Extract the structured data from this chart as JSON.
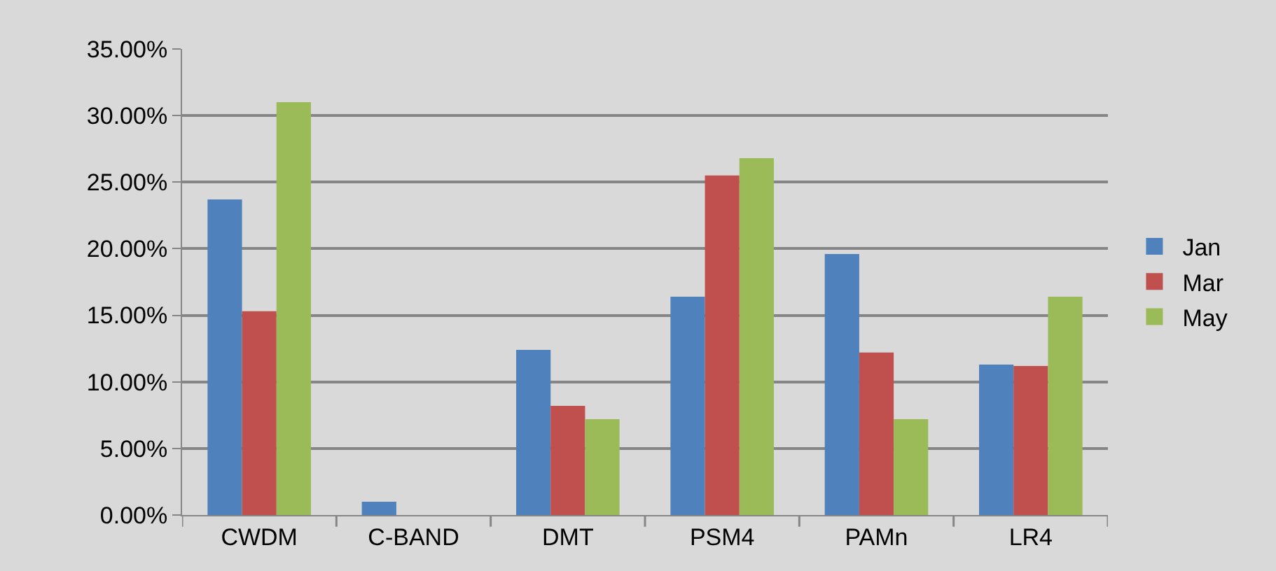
{
  "chart_data": {
    "type": "bar",
    "categories": [
      "CWDM",
      "C-BAND",
      "DMT",
      "PSM4",
      "PAMn",
      "LR4"
    ],
    "series": [
      {
        "name": "Jan",
        "color": "#4f81bd",
        "values": [
          23.7,
          1.0,
          12.4,
          16.4,
          19.6,
          11.3
        ]
      },
      {
        "name": "Mar",
        "color": "#c0504d",
        "values": [
          15.3,
          0,
          8.2,
          25.5,
          12.2,
          11.2
        ]
      },
      {
        "name": "May",
        "color": "#9bbb59",
        "values": [
          31.0,
          0,
          7.2,
          26.8,
          7.2,
          16.4
        ]
      }
    ],
    "ylim": [
      0,
      35
    ],
    "yticks": [
      {
        "value": 0,
        "label": "0.00%"
      },
      {
        "value": 5,
        "label": "5.00%"
      },
      {
        "value": 10,
        "label": "10.00%"
      },
      {
        "value": 15,
        "label": "15.00%"
      },
      {
        "value": 20,
        "label": "20.00%"
      },
      {
        "value": 25,
        "label": "25.00%"
      },
      {
        "value": 30,
        "label": "30.00%"
      },
      {
        "value": 35,
        "label": "35.00%"
      }
    ],
    "grid": "y",
    "legend": "right"
  }
}
